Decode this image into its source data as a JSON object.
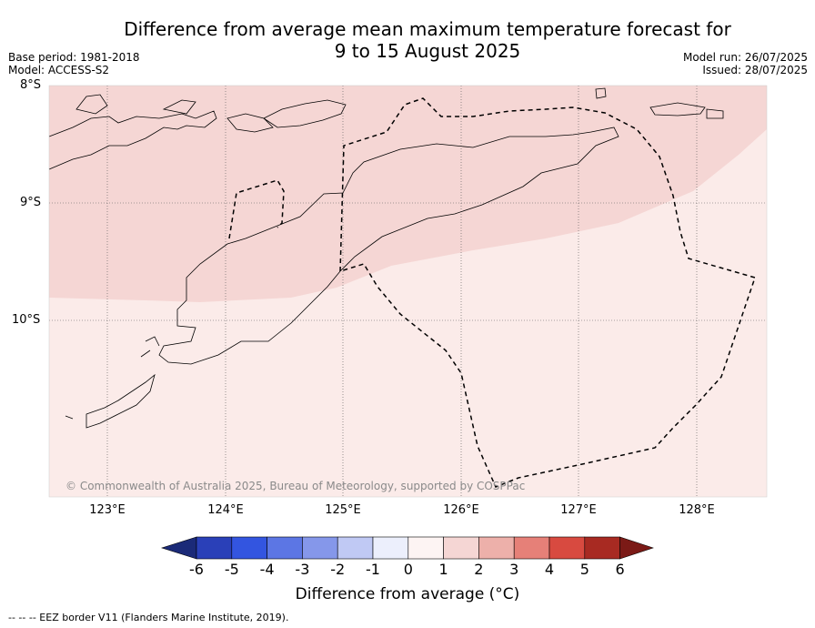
{
  "header": {
    "title_line1": "Difference from average mean maximum temperature forecast for",
    "title_line2": "9 to 15 August 2025",
    "base_period": "Base period: 1981-2018",
    "model": "Model: ACCESS-S2",
    "model_run": "Model run: 26/07/2025",
    "issued": "Issued: 28/07/2025"
  },
  "map": {
    "lat_labels": [
      "8°S",
      "9°S",
      "10°S"
    ],
    "lon_labels": [
      "123°E",
      "124°E",
      "125°E",
      "126°E",
      "127°E",
      "128°E"
    ],
    "copyright": "© Commonwealth of Australia 2025, Bureau of Meteorology, supported by COSPPac",
    "colors": {
      "band_1_to_2": "#f5d6d4",
      "band_0_to_1": "#fbebe9"
    }
  },
  "colorbar": {
    "ticks": [
      "-6",
      "-5",
      "-4",
      "-3",
      "-2",
      "-1",
      "0",
      "1",
      "2",
      "3",
      "4",
      "5",
      "6"
    ],
    "colors": [
      "#1b2a78",
      "#2a40b8",
      "#3355e0",
      "#5c76e4",
      "#8597ea",
      "#c0c9f4",
      "#eceffc",
      "#fdf4f3",
      "#f5d6d4",
      "#edb0aa",
      "#e68078",
      "#d84a40",
      "#a82a22",
      "#7b1a16"
    ],
    "label": "Difference from average (°C)"
  },
  "footnote": "-- -- -- EEZ border V11 (Flanders Marine Institute, 2019)."
}
